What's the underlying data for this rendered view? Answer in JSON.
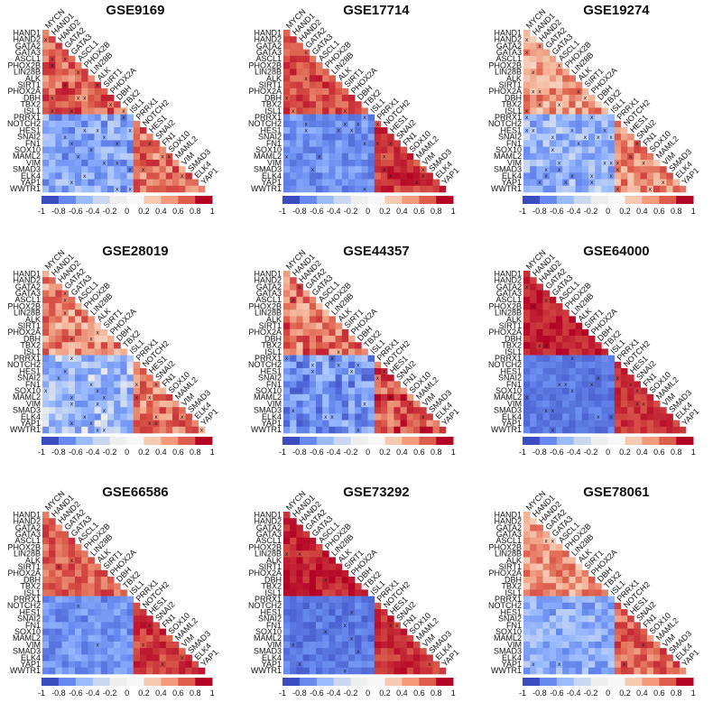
{
  "chart_data": {
    "type": "heatmap",
    "description_of_values": "Lower-triangular gene-gene correlation matrices, one panel per dataset; cells with low support are marked with an x.",
    "genes": [
      "MYCN",
      "HAND1",
      "HAND2",
      "GATA2",
      "GATA3",
      "ASCL1",
      "PHOX2B",
      "LIN28B",
      "ALK",
      "SIRT1",
      "PHOX2A",
      "DBH",
      "TBX2",
      "ISL1",
      "PRRX1",
      "NOTCH2",
      "HES1",
      "SNAI2",
      "FN1",
      "SOX10",
      "MAML2",
      "VIM",
      "SMAD3",
      "ELK4",
      "YAP1",
      "WWTR1"
    ],
    "group_split_index": 14,
    "colorbar": {
      "ticks": [
        "-1",
        "-0.8",
        "-0.6",
        "-0.4",
        "-0.2",
        "0",
        "0.2",
        "0.4",
        "0.6",
        "0.8",
        "1"
      ],
      "range": [
        -1,
        1
      ],
      "colors": [
        "#3b4cc0",
        "#6788ee",
        "#9abbff",
        "#c9d7f0",
        "#eeeeee",
        "#f7f7f7",
        "#f6c9b1",
        "#f49a7b",
        "#de5c4c",
        "#b40426"
      ]
    },
    "panels": [
      {
        "title": "GSE9169",
        "strength": {
          "ww": 0.62,
          "mm": 0.55,
          "wm": -0.45
        },
        "noise": 0.3,
        "seed": 11,
        "x_fraction": 0.1
      },
      {
        "title": "GSE17714",
        "strength": {
          "ww": 0.7,
          "mm": 0.78,
          "wm": -0.55
        },
        "noise": 0.22,
        "seed": 23,
        "x_fraction": 0.06
      },
      {
        "title": "GSE19274",
        "strength": {
          "ww": 0.4,
          "mm": 0.45,
          "wm": -0.35
        },
        "noise": 0.28,
        "seed": 37,
        "x_fraction": 0.14
      },
      {
        "title": "GSE28019",
        "strength": {
          "ww": 0.45,
          "mm": 0.5,
          "wm": -0.3
        },
        "noise": 0.3,
        "seed": 41,
        "x_fraction": 0.1
      },
      {
        "title": "GSE44357",
        "strength": {
          "ww": 0.55,
          "mm": 0.7,
          "wm": -0.55
        },
        "noise": 0.35,
        "seed": 53,
        "x_fraction": 0.08
      },
      {
        "title": "GSE64000",
        "strength": {
          "ww": 0.88,
          "mm": 0.8,
          "wm": -0.7
        },
        "noise": 0.15,
        "seed": 67,
        "x_fraction": 0.05
      },
      {
        "title": "GSE66586",
        "strength": {
          "ww": 0.6,
          "mm": 0.75,
          "wm": -0.55
        },
        "noise": 0.22,
        "seed": 71,
        "x_fraction": 0.02
      },
      {
        "title": "GSE73292",
        "strength": {
          "ww": 0.88,
          "mm": 0.8,
          "wm": -0.7
        },
        "noise": 0.18,
        "seed": 83,
        "x_fraction": 0.02
      },
      {
        "title": "GSE78061",
        "strength": {
          "ww": 0.4,
          "mm": 0.6,
          "wm": -0.4
        },
        "noise": 0.25,
        "seed": 97,
        "x_fraction": 0.02
      }
    ]
  }
}
